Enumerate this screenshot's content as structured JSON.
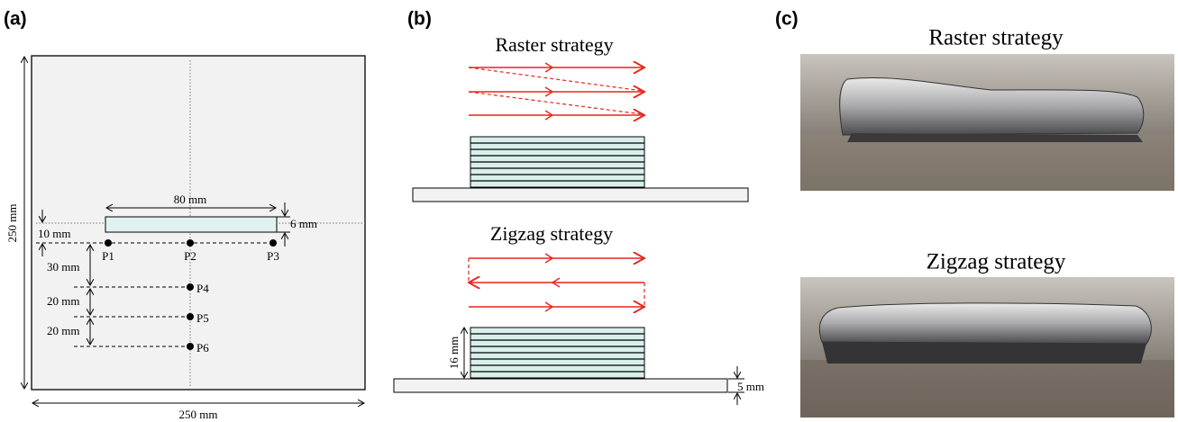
{
  "panels": [
    {
      "label": "(a)",
      "plate_height": "250 mm",
      "plate_width": "250 mm",
      "deposit_length": "80 mm",
      "deposit_width": "6 mm",
      "offset": "10 mm",
      "points": [
        "P1",
        "P2",
        "P3",
        "P4",
        "P5",
        "P6"
      ],
      "spacings": [
        "30 mm",
        "20 mm",
        "20 mm"
      ]
    },
    {
      "label": "(b)",
      "raster_title": "Raster strategy",
      "zigzag_title": "Zigzag strategy",
      "wall_height": "16 mm",
      "substrate_thickness": "5 mm"
    },
    {
      "label": "(c)",
      "raster_title": "Raster strategy",
      "zigzag_title": "Zigzag strategy"
    }
  ]
}
